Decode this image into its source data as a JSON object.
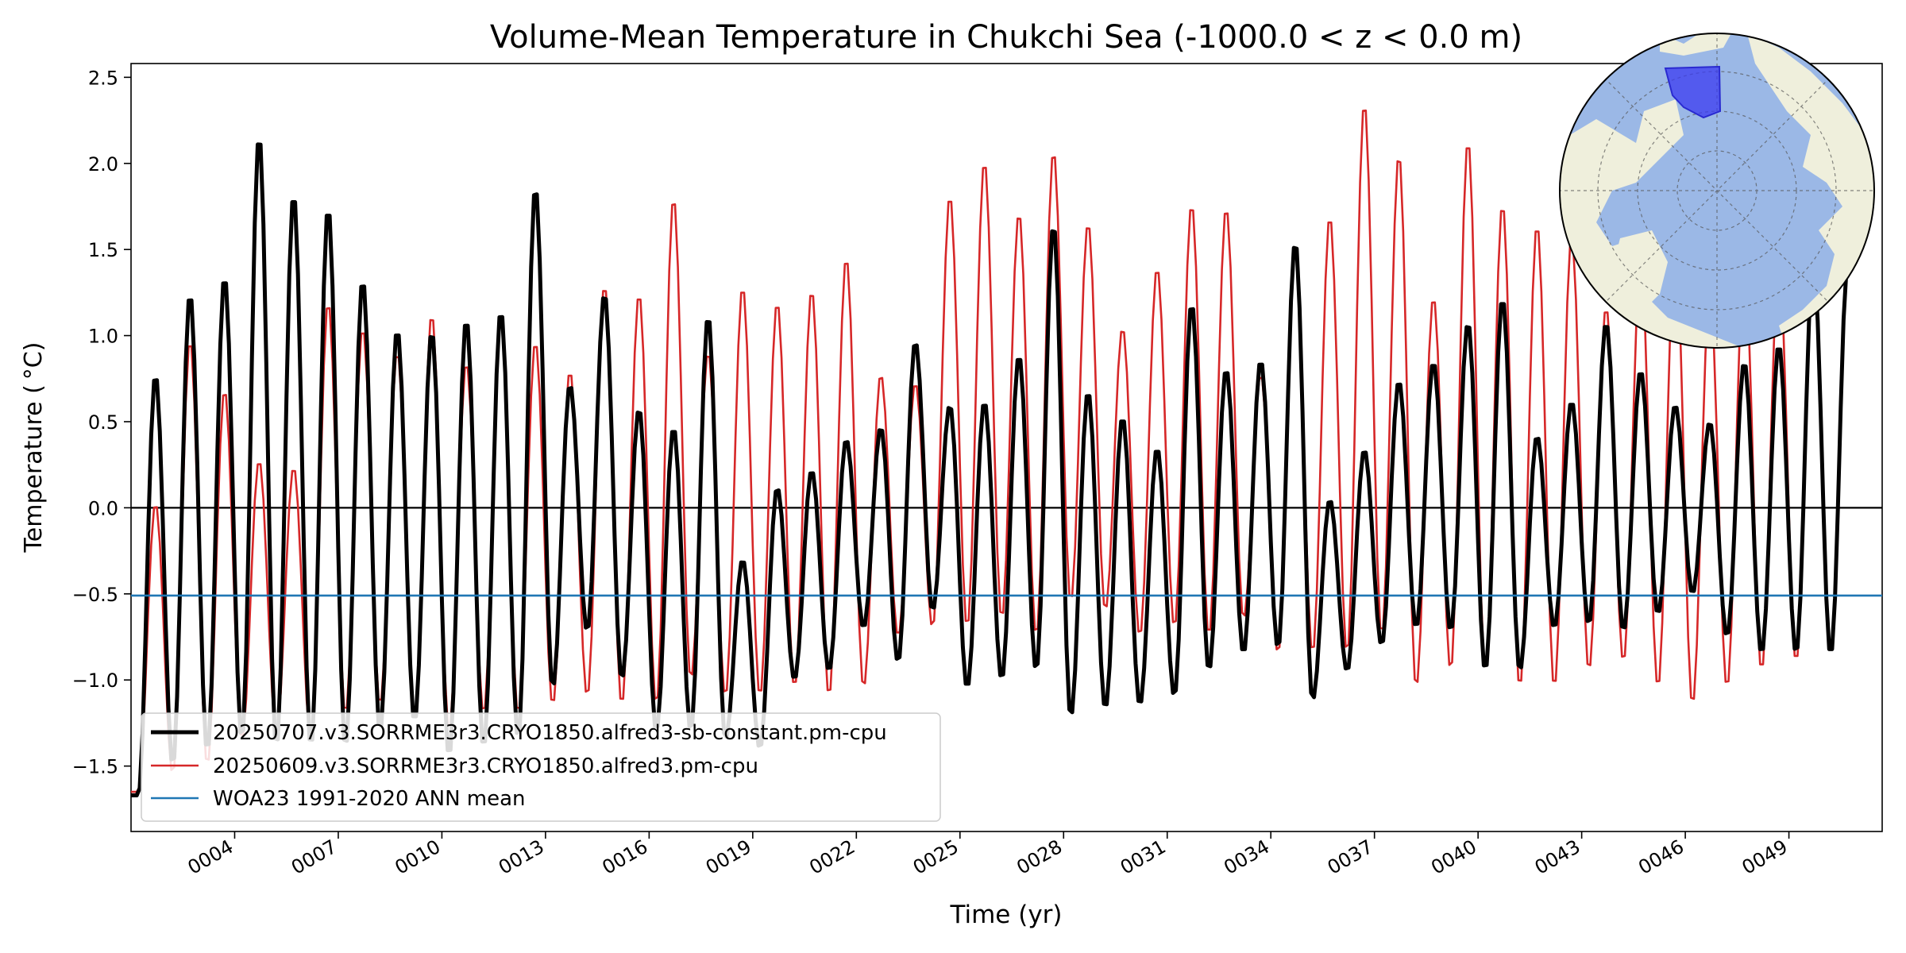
{
  "chart_data": {
    "type": "line",
    "title": "Volume-Mean Temperature in Chukchi Sea (-1000.0 < z < 0.0 m)",
    "xlabel": "Time (yr)",
    "ylabel": "Temperature ( °C)",
    "xlim": [
      1,
      51.7
    ],
    "ylim": [
      -1.88,
      2.58
    ],
    "x_ticks": [
      4,
      7,
      10,
      13,
      16,
      19,
      22,
      25,
      28,
      31,
      34,
      37,
      40,
      43,
      46,
      49
    ],
    "x_tick_labels": [
      "0004",
      "0007",
      "0010",
      "0013",
      "0016",
      "0019",
      "0022",
      "0025",
      "0028",
      "0031",
      "0034",
      "0037",
      "0040",
      "0043",
      "0046",
      "0049"
    ],
    "y_ticks": [
      -1.5,
      -1.0,
      -0.5,
      0.0,
      0.5,
      1.0,
      1.5,
      2.0,
      2.5
    ],
    "y_tick_labels": [
      "−1.5",
      "−1.0",
      "−0.5",
      "0.0",
      "0.5",
      "1.0",
      "1.5",
      "2.0",
      "2.5"
    ],
    "legend_position": "lower-left",
    "annual_peak_month": 8.5,
    "series": [
      {
        "name": "20250707.v3.SORRME3r3.CRYO1850.alfred3-sb-constant.pm-cpu",
        "color": "#000000",
        "peaks": [
          0.78,
          1.25,
          1.35,
          2.17,
          1.83,
          1.75,
          1.33,
          1.04,
          1.03,
          1.1,
          1.15,
          1.87,
          0.72,
          1.25,
          0.58,
          0.47,
          1.12,
          -0.3,
          0.12,
          0.22,
          0.4,
          0.47,
          0.97,
          0.6,
          0.62,
          0.89,
          1.65,
          0.68,
          0.53,
          0.35,
          1.19,
          0.81,
          0.86,
          1.55,
          0.05,
          0.34,
          0.74,
          0.85,
          1.08,
          1.22,
          0.42,
          0.62,
          1.08,
          0.8,
          0.6,
          0.5,
          0.85,
          0.95,
          1.42,
          1.43
        ],
        "troughs": [
          -1.67,
          -1.5,
          -1.42,
          -1.35,
          -1.4,
          -1.4,
          -1.4,
          -1.3,
          -1.25,
          -1.45,
          -1.4,
          -1.35,
          -1.05,
          -0.72,
          -1.0,
          -1.3,
          -1.3,
          -1.35,
          -1.4,
          -1.0,
          -0.95,
          -0.7,
          -0.9,
          -0.6,
          -1.05,
          -1.0,
          -0.95,
          -1.22,
          -1.17,
          -1.15,
          -1.1,
          -0.95,
          -0.85,
          -0.82,
          -1.12,
          -0.95,
          -0.8,
          -0.7,
          -0.72,
          -0.95,
          -0.95,
          -0.7,
          -0.68,
          -0.72,
          -0.62,
          -0.5,
          -0.75,
          -0.85,
          -0.85,
          -0.86
        ]
      },
      {
        "name": "20250609.v3.SORRME3r3.CRYO1850.alfred3.pm-cpu",
        "color": "#d62728",
        "peaks": [
          0.03,
          0.98,
          0.69,
          0.28,
          0.24,
          1.2,
          1.05,
          0.91,
          1.13,
          0.85,
          1.12,
          0.97,
          0.8,
          1.3,
          1.25,
          1.81,
          0.91,
          1.29,
          1.2,
          1.27,
          1.46,
          0.78,
          0.73,
          1.82,
          2.02,
          1.72,
          2.08,
          1.66,
          1.05,
          1.4,
          1.77,
          1.75,
          0.78,
          1.52,
          1.7,
          2.36,
          2.06,
          1.23,
          2.14,
          1.77,
          1.65,
          1.58,
          1.17,
          1.42,
          1.57,
          1.25,
          1.43,
          1.42,
          1.42,
          1.4
        ],
        "troughs": [
          -1.65,
          -1.55,
          -1.5,
          -1.35,
          -1.3,
          -1.35,
          -1.2,
          -1.15,
          -1.2,
          -1.3,
          -1.2,
          -1.2,
          -1.15,
          -1.1,
          -1.15,
          -1.15,
          -1.0,
          -1.1,
          -1.1,
          -1.05,
          -1.1,
          -1.05,
          -0.75,
          -0.7,
          -0.7,
          -0.65,
          -0.75,
          -0.55,
          -0.6,
          -0.75,
          -0.7,
          -0.75,
          -0.65,
          -0.85,
          -0.85,
          -0.85,
          -0.75,
          -1.05,
          -0.95,
          -0.95,
          -1.05,
          -1.05,
          -0.95,
          -0.9,
          -1.05,
          -1.15,
          -1.05,
          -0.95,
          -0.9,
          -0.85
        ]
      },
      {
        "name": "WOA23 1991-2020 ANN mean",
        "color": "#1f77b4",
        "values": [
          -0.51
        ]
      }
    ],
    "reference_line": {
      "y": 0.0,
      "color": "#000000"
    },
    "inset_map": {
      "projection": "north-polar-stereographic",
      "ocean_color": "#9bb8e6",
      "land_color": "#efefdc",
      "region_color": "#3b3bf0"
    }
  }
}
